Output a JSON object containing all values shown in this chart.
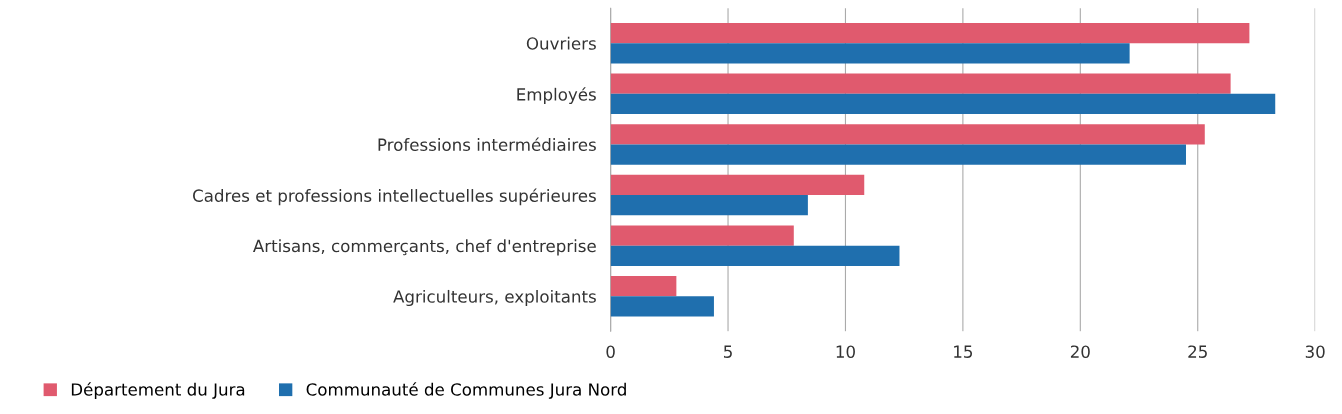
{
  "chart_data": {
    "type": "bar",
    "orientation": "horizontal",
    "categories": [
      "Ouvriers",
      "Employés",
      "Professions intermédiaires",
      "Cadres et professions intellectuelles supérieures",
      "Artisans, commerçants, chef d'entreprise",
      "Agriculteurs, exploitants"
    ],
    "series": [
      {
        "name": "Département du Jura",
        "color": "#e05a6e",
        "values": [
          27.2,
          26.4,
          25.3,
          10.8,
          7.8,
          2.8
        ]
      },
      {
        "name": "Communauté de Communes Jura Nord",
        "color": "#1f6fae",
        "values": [
          22.1,
          28.3,
          24.5,
          8.4,
          12.3,
          4.4
        ]
      }
    ],
    "xlim": [
      0,
      30
    ],
    "xticks": [
      0,
      5,
      10,
      15,
      20,
      25,
      30
    ],
    "grid": "x",
    "legend": "bottom"
  }
}
